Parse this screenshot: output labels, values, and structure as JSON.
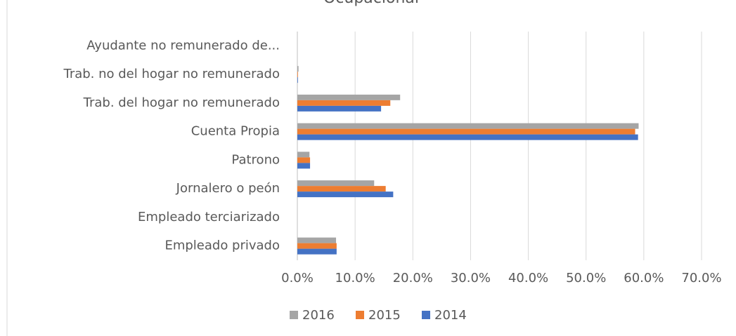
{
  "chart_data": {
    "type": "hbar",
    "title": "Ocupacional",
    "categories": [
      "Ayudante no remunerado de...",
      "Trab. no del hogar no remunerado",
      "Trab. del hogar no remunerado",
      "Cuenta Propia",
      "Patrono",
      "Jornalero o peón",
      "Empleado terciarizado",
      "Empleado privado"
    ],
    "series": [
      {
        "name": "2016",
        "color": "#a5a5a5",
        "values": [
          0,
          0.2,
          17.8,
          59.1,
          2.1,
          13.3,
          0,
          6.7
        ]
      },
      {
        "name": "2015",
        "color": "#ed7d31",
        "values": [
          0,
          0.1,
          16.1,
          58.5,
          2.2,
          15.3,
          0,
          6.8
        ]
      },
      {
        "name": "2014",
        "color": "#4472c4",
        "values": [
          0,
          0.1,
          14.5,
          59.0,
          2.2,
          16.6,
          0,
          6.8
        ]
      }
    ],
    "xlim": [
      0,
      70
    ],
    "xticks": [
      {
        "value": 0,
        "label": "0.0%"
      },
      {
        "value": 10,
        "label": "10.0%"
      },
      {
        "value": 20,
        "label": "20.0%"
      },
      {
        "value": 30,
        "label": "30.0%"
      },
      {
        "value": 40,
        "label": "40.0%"
      },
      {
        "value": 50,
        "label": "50.0%"
      },
      {
        "value": 60,
        "label": "60.0%"
      },
      {
        "value": 70,
        "label": "70.0%"
      }
    ],
    "grid": true,
    "legend": "bottom"
  }
}
